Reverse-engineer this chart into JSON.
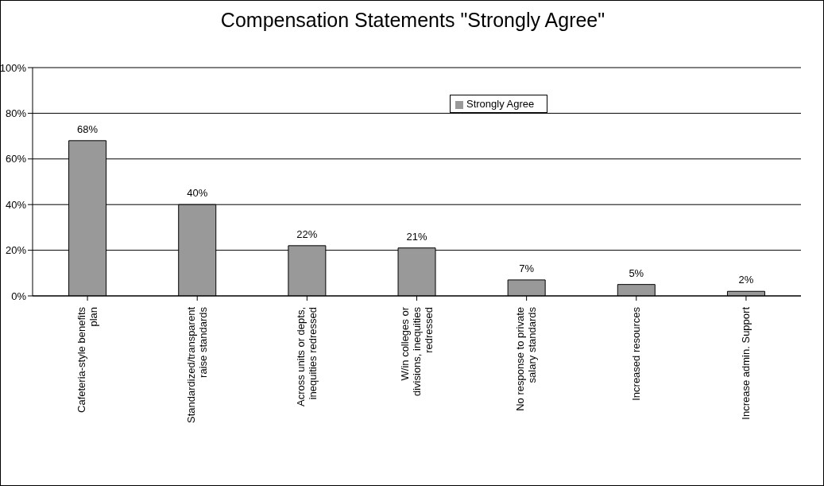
{
  "chart_data": {
    "type": "bar",
    "title": "Compensation Statements \"Strongly Agree\"",
    "categories": [
      "Cafeteria-style benefits plan",
      "Standardized/transparent raise standards",
      "Across units or depts, inequities redressed",
      "W/in colleges or divisions, inequities redressed",
      "No response to private salary standards",
      "Increased resources",
      "Increase admin. Support"
    ],
    "series": [
      {
        "name": "Strongly Agree",
        "color": "#999999",
        "values": [
          68,
          40,
          22,
          21,
          7,
          5,
          2
        ],
        "value_labels": [
          "68%",
          "40%",
          "22%",
          "21%",
          "7%",
          "5%",
          "2%"
        ]
      }
    ],
    "ylim": [
      0,
      100
    ],
    "yticks": [
      {
        "value": 0,
        "label": "0%"
      },
      {
        "value": 20,
        "label": "20%"
      },
      {
        "value": 40,
        "label": "40%"
      },
      {
        "value": 60,
        "label": "60%"
      },
      {
        "value": 80,
        "label": "80%"
      },
      {
        "value": 100,
        "label": "100%"
      }
    ],
    "grid": "y",
    "legend": "top right"
  }
}
